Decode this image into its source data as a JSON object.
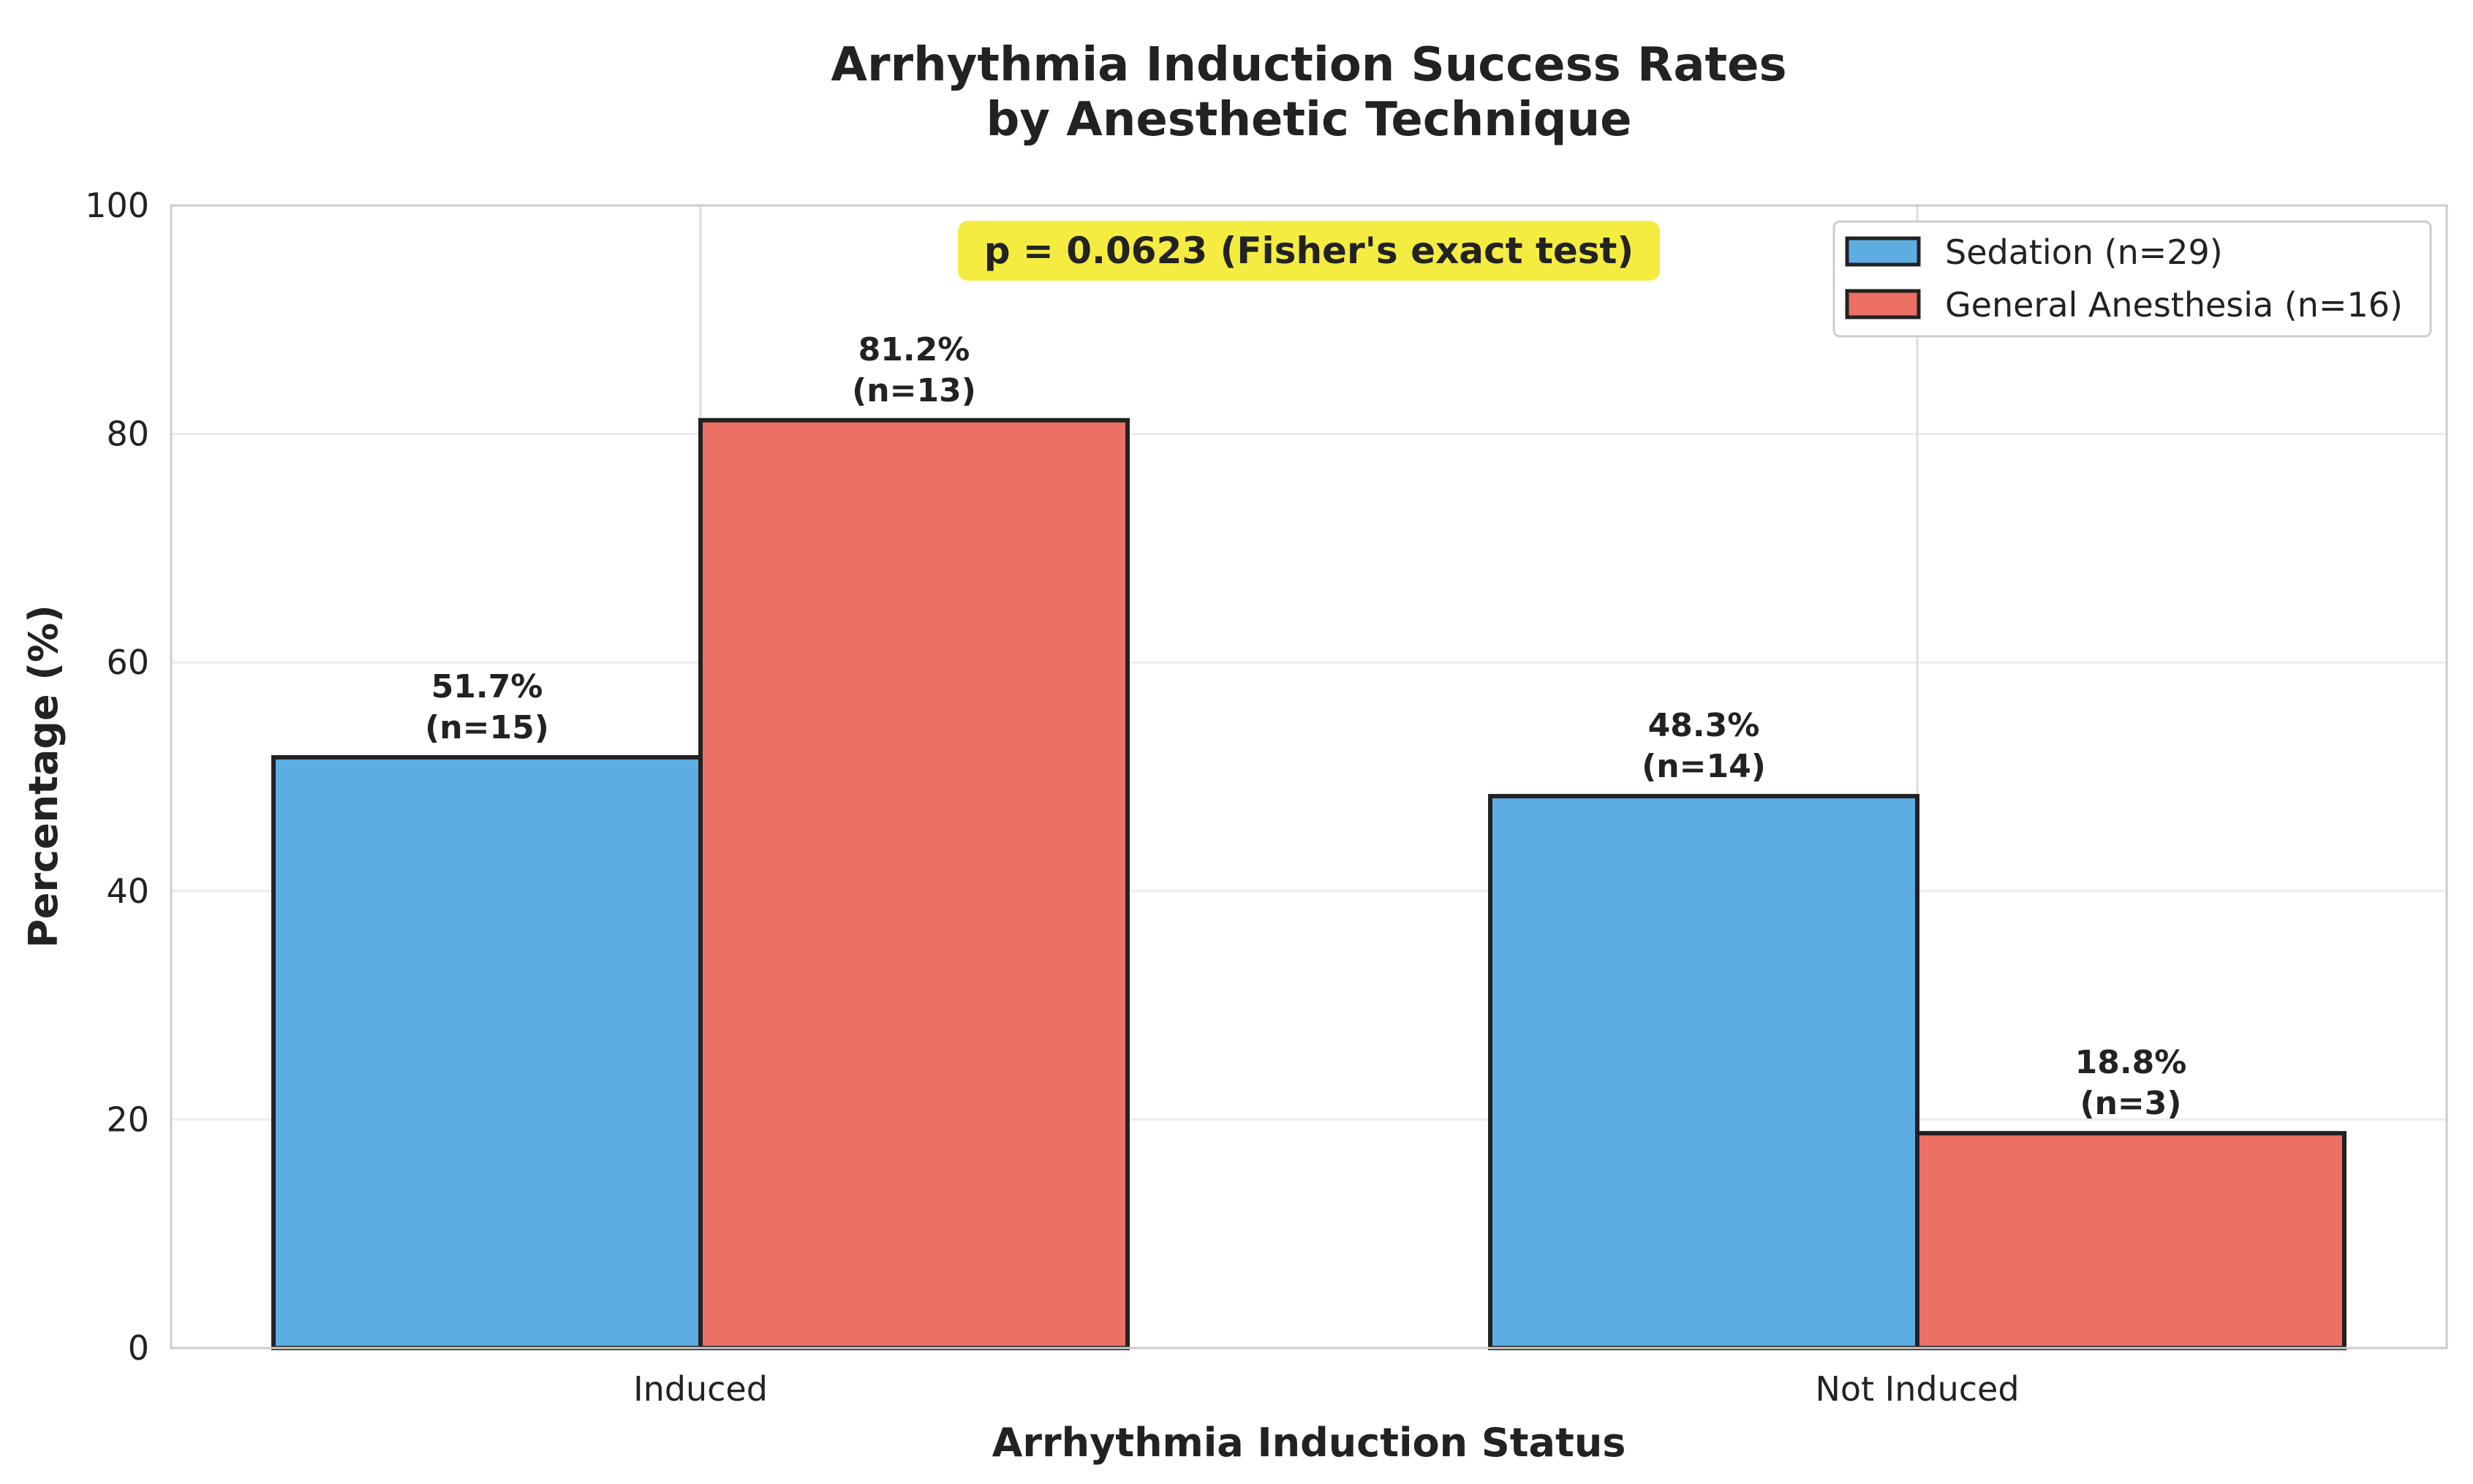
{
  "chart_data": {
    "type": "bar",
    "title": [
      "Arrhythmia Induction Success Rates",
      "by Anesthetic Technique"
    ],
    "xlabel": "Arrhythmia Induction Status",
    "ylabel": "Percentage (%)",
    "ylim": [
      0,
      100
    ],
    "yticks": [
      0,
      20,
      40,
      60,
      80,
      100
    ],
    "categories": [
      "Induced",
      "Not Induced"
    ],
    "series": [
      {
        "name": "Sedation (n=29)",
        "color": "#5DADE2",
        "values": [
          51.7,
          48.3
        ],
        "labels": [
          [
            "51.7%",
            "(n=15)"
          ],
          [
            "48.3%",
            "(n=14)"
          ]
        ]
      },
      {
        "name": "General Anesthesia (n=16)",
        "color": "#EC7063",
        "values": [
          81.2,
          18.8
        ],
        "labels": [
          [
            "81.2%",
            "(n=13)"
          ],
          [
            "18.8%",
            "(n=3)"
          ]
        ]
      }
    ],
    "annotation": {
      "text": "p = 0.0623 (Fisher's exact test)",
      "background": "#F5EC42"
    },
    "legend": {
      "position": "top-right"
    },
    "grid": true
  }
}
